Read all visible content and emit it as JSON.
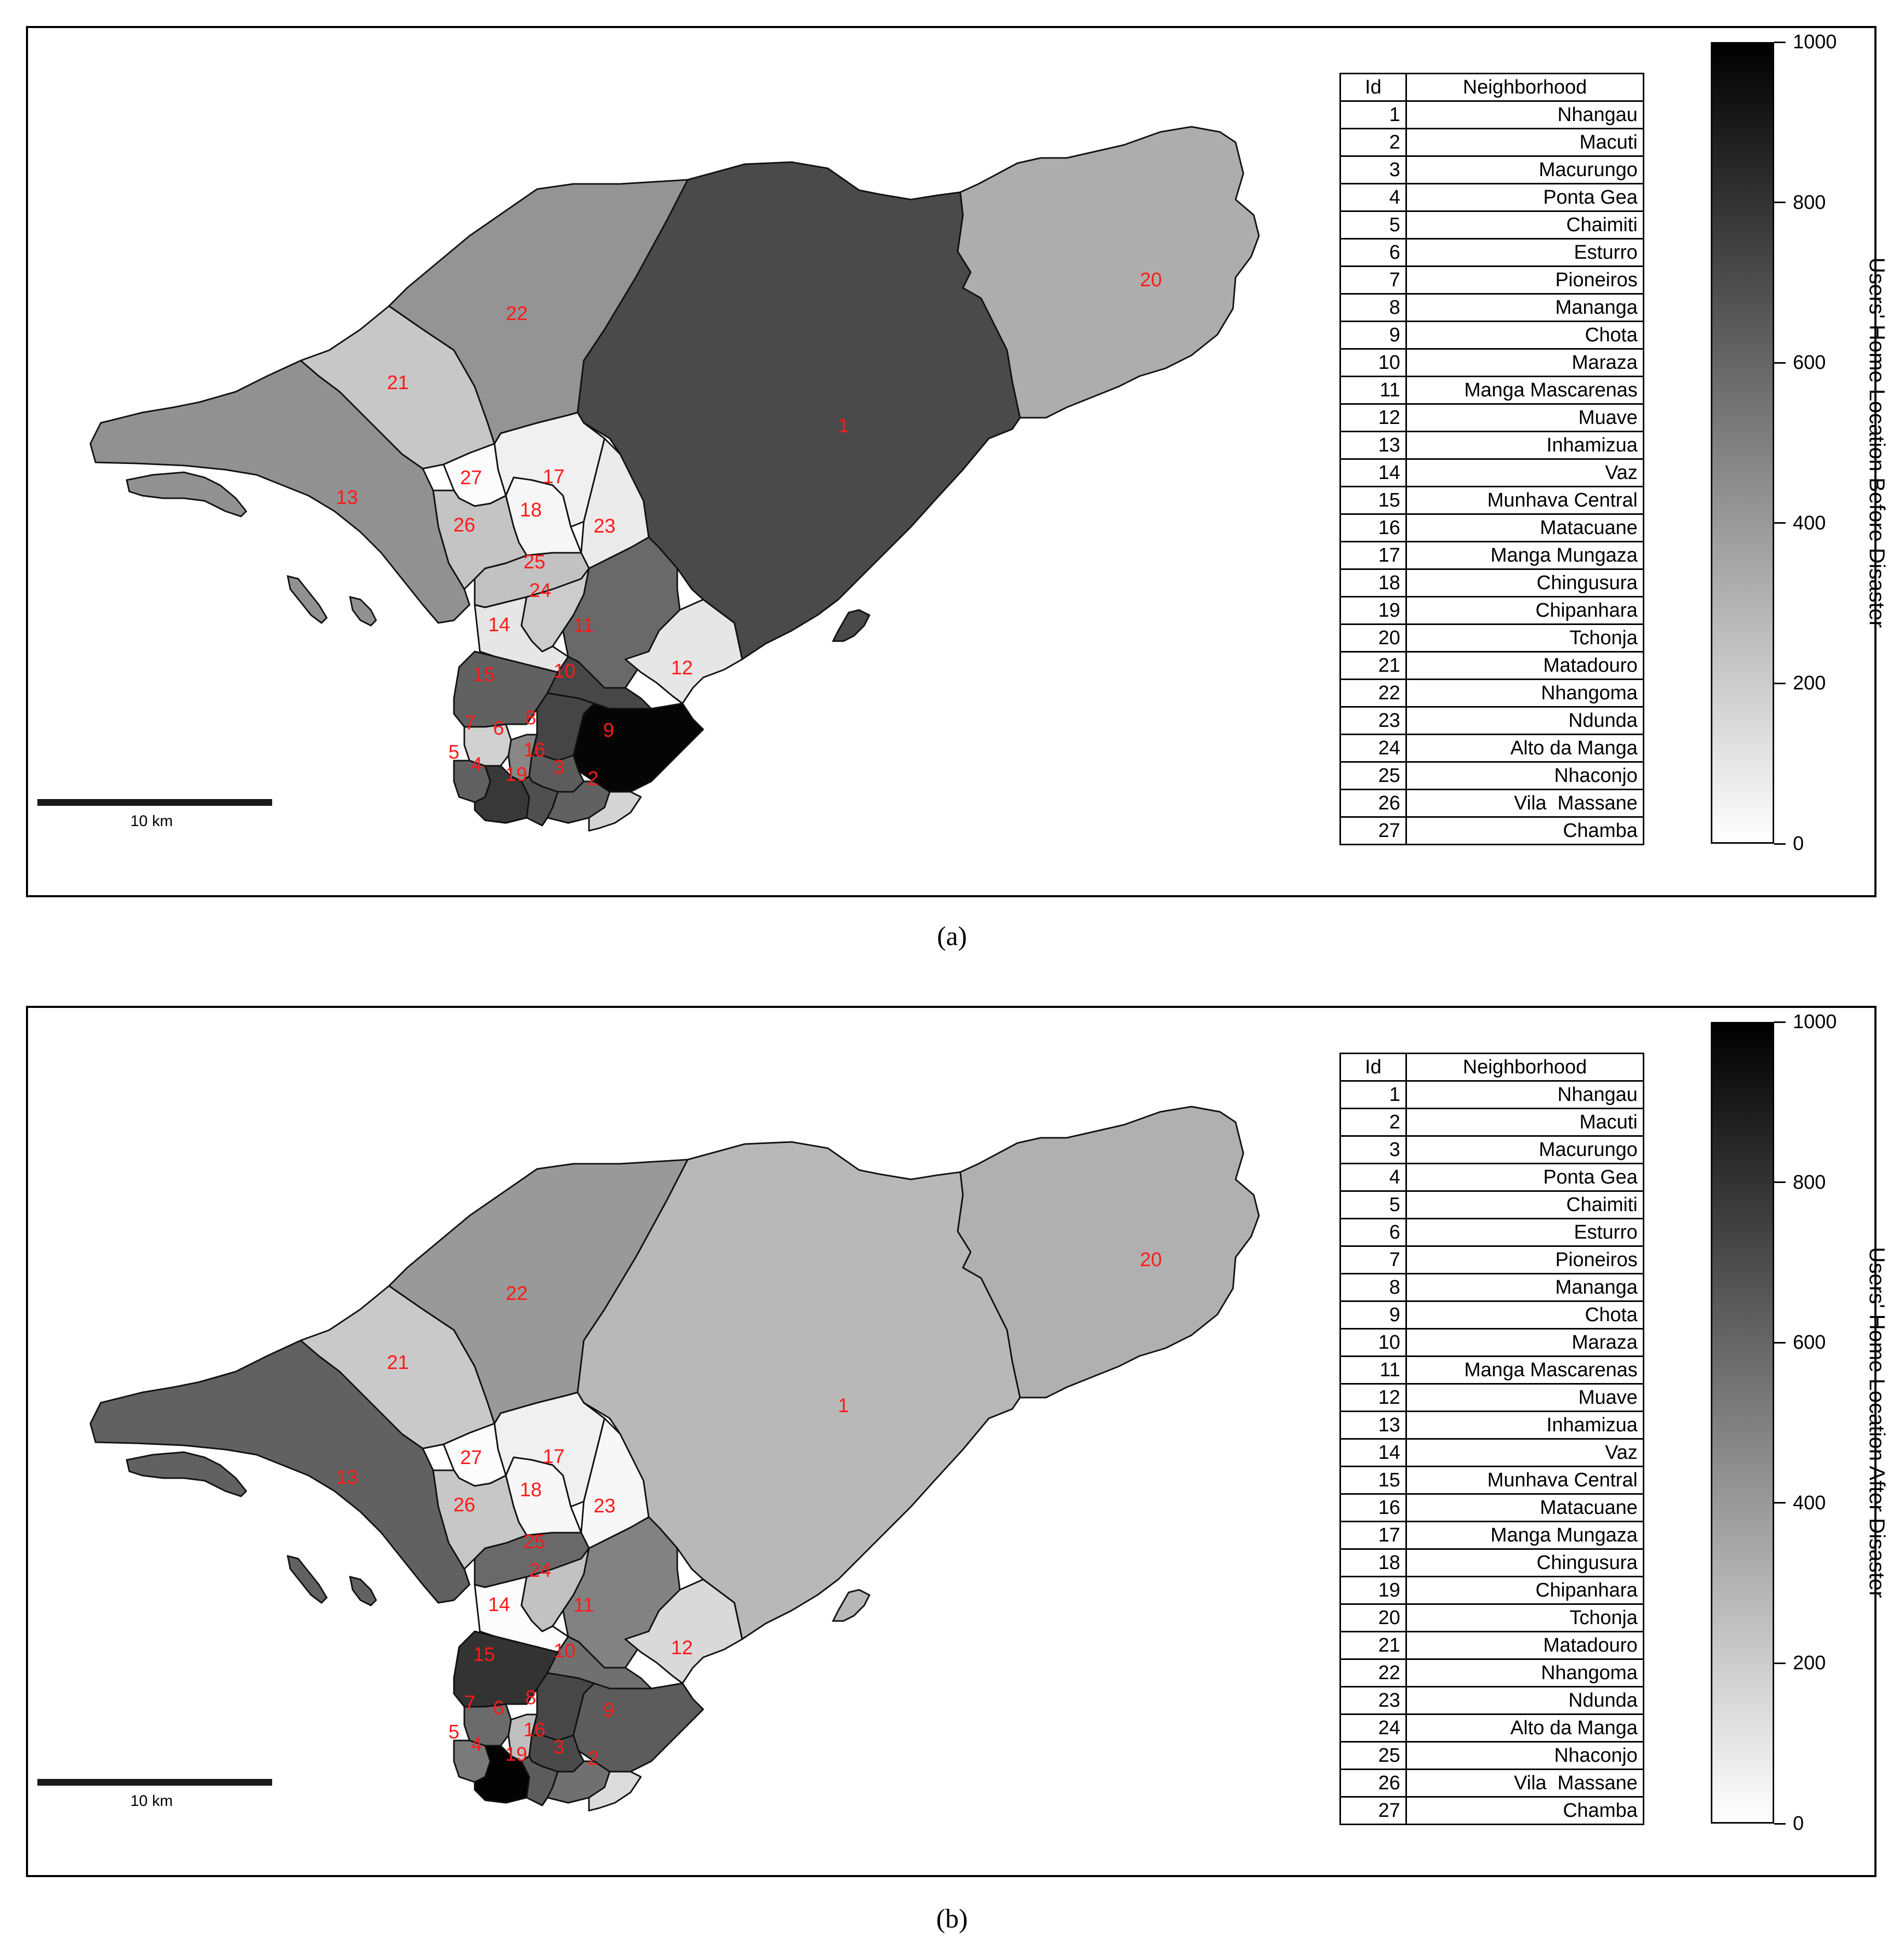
{
  "scale_values": [
    0,
    200,
    400,
    600,
    800,
    1000
  ],
  "scale_range": [
    0,
    1000
  ],
  "scale_bar_label": "10 km",
  "table_header": {
    "id": "Id",
    "name": "Neighborhood"
  },
  "neighborhoods": [
    {
      "id": "1",
      "name": "Nhangau"
    },
    {
      "id": "2",
      "name": "Macuti"
    },
    {
      "id": "3",
      "name": "Macurungo"
    },
    {
      "id": "4",
      "name": "Ponta Gea"
    },
    {
      "id": "5",
      "name": "Chaimiti"
    },
    {
      "id": "6",
      "name": "Esturro"
    },
    {
      "id": "7",
      "name": "Pioneiros"
    },
    {
      "id": "8",
      "name": "Mananga"
    },
    {
      "id": "9",
      "name": "Chota"
    },
    {
      "id": "10",
      "name": "Maraza"
    },
    {
      "id": "11",
      "name": "Manga Mascarenas"
    },
    {
      "id": "12",
      "name": "Muave"
    },
    {
      "id": "13",
      "name": "Inhamizua"
    },
    {
      "id": "14",
      "name": "Vaz"
    },
    {
      "id": "15",
      "name": "Munhava Central"
    },
    {
      "id": "16",
      "name": "Matacuane"
    },
    {
      "id": "17",
      "name": "Manga Mungaza"
    },
    {
      "id": "18",
      "name": "Chingusura"
    },
    {
      "id": "19",
      "name": "Chipanhara"
    },
    {
      "id": "20",
      "name": "Tchonja"
    },
    {
      "id": "21",
      "name": "Matadouro"
    },
    {
      "id": "22",
      "name": "Nhangoma"
    },
    {
      "id": "23",
      "name": "Ndunda"
    },
    {
      "id": "24",
      "name": "Alto da Manga"
    },
    {
      "id": "25",
      "name": "Nhaconjo"
    },
    {
      "id": "26",
      "name": "Vila  Massane"
    },
    {
      "id": "27",
      "name": "Chamba"
    }
  ],
  "panels": [
    {
      "caption": "(a)",
      "colorbar_title": "Users' Home Location Before Disaster",
      "values": {
        "1": 710,
        "2": 170,
        "3": 620,
        "4": 780,
        "5": 620,
        "6": 470,
        "7": 180,
        "8": 730,
        "9": 980,
        "10": 720,
        "11": 590,
        "12": 100,
        "13": 430,
        "14": 100,
        "15": 620,
        "16": 640,
        "17": 60,
        "18": 30,
        "19": 690,
        "20": 320,
        "21": 220,
        "22": 420,
        "23": 80,
        "24": 200,
        "25": 240,
        "26": 230,
        "27": 10
      }
    },
    {
      "caption": "(b)",
      "colorbar_title": "Users' Home Location After Disaster",
      "values": {
        "1": 280,
        "2": 140,
        "3": 560,
        "4": 990,
        "5": 520,
        "6": 250,
        "7": 580,
        "8": 720,
        "9": 640,
        "10": 560,
        "11": 490,
        "12": 150,
        "13": 620,
        "14": 10,
        "15": 800,
        "16": 710,
        "17": 60,
        "18": 30,
        "19": 640,
        "20": 310,
        "21": 210,
        "22": 400,
        "23": 30,
        "24": 240,
        "25": 590,
        "26": 220,
        "27": 10
      }
    }
  ]
}
